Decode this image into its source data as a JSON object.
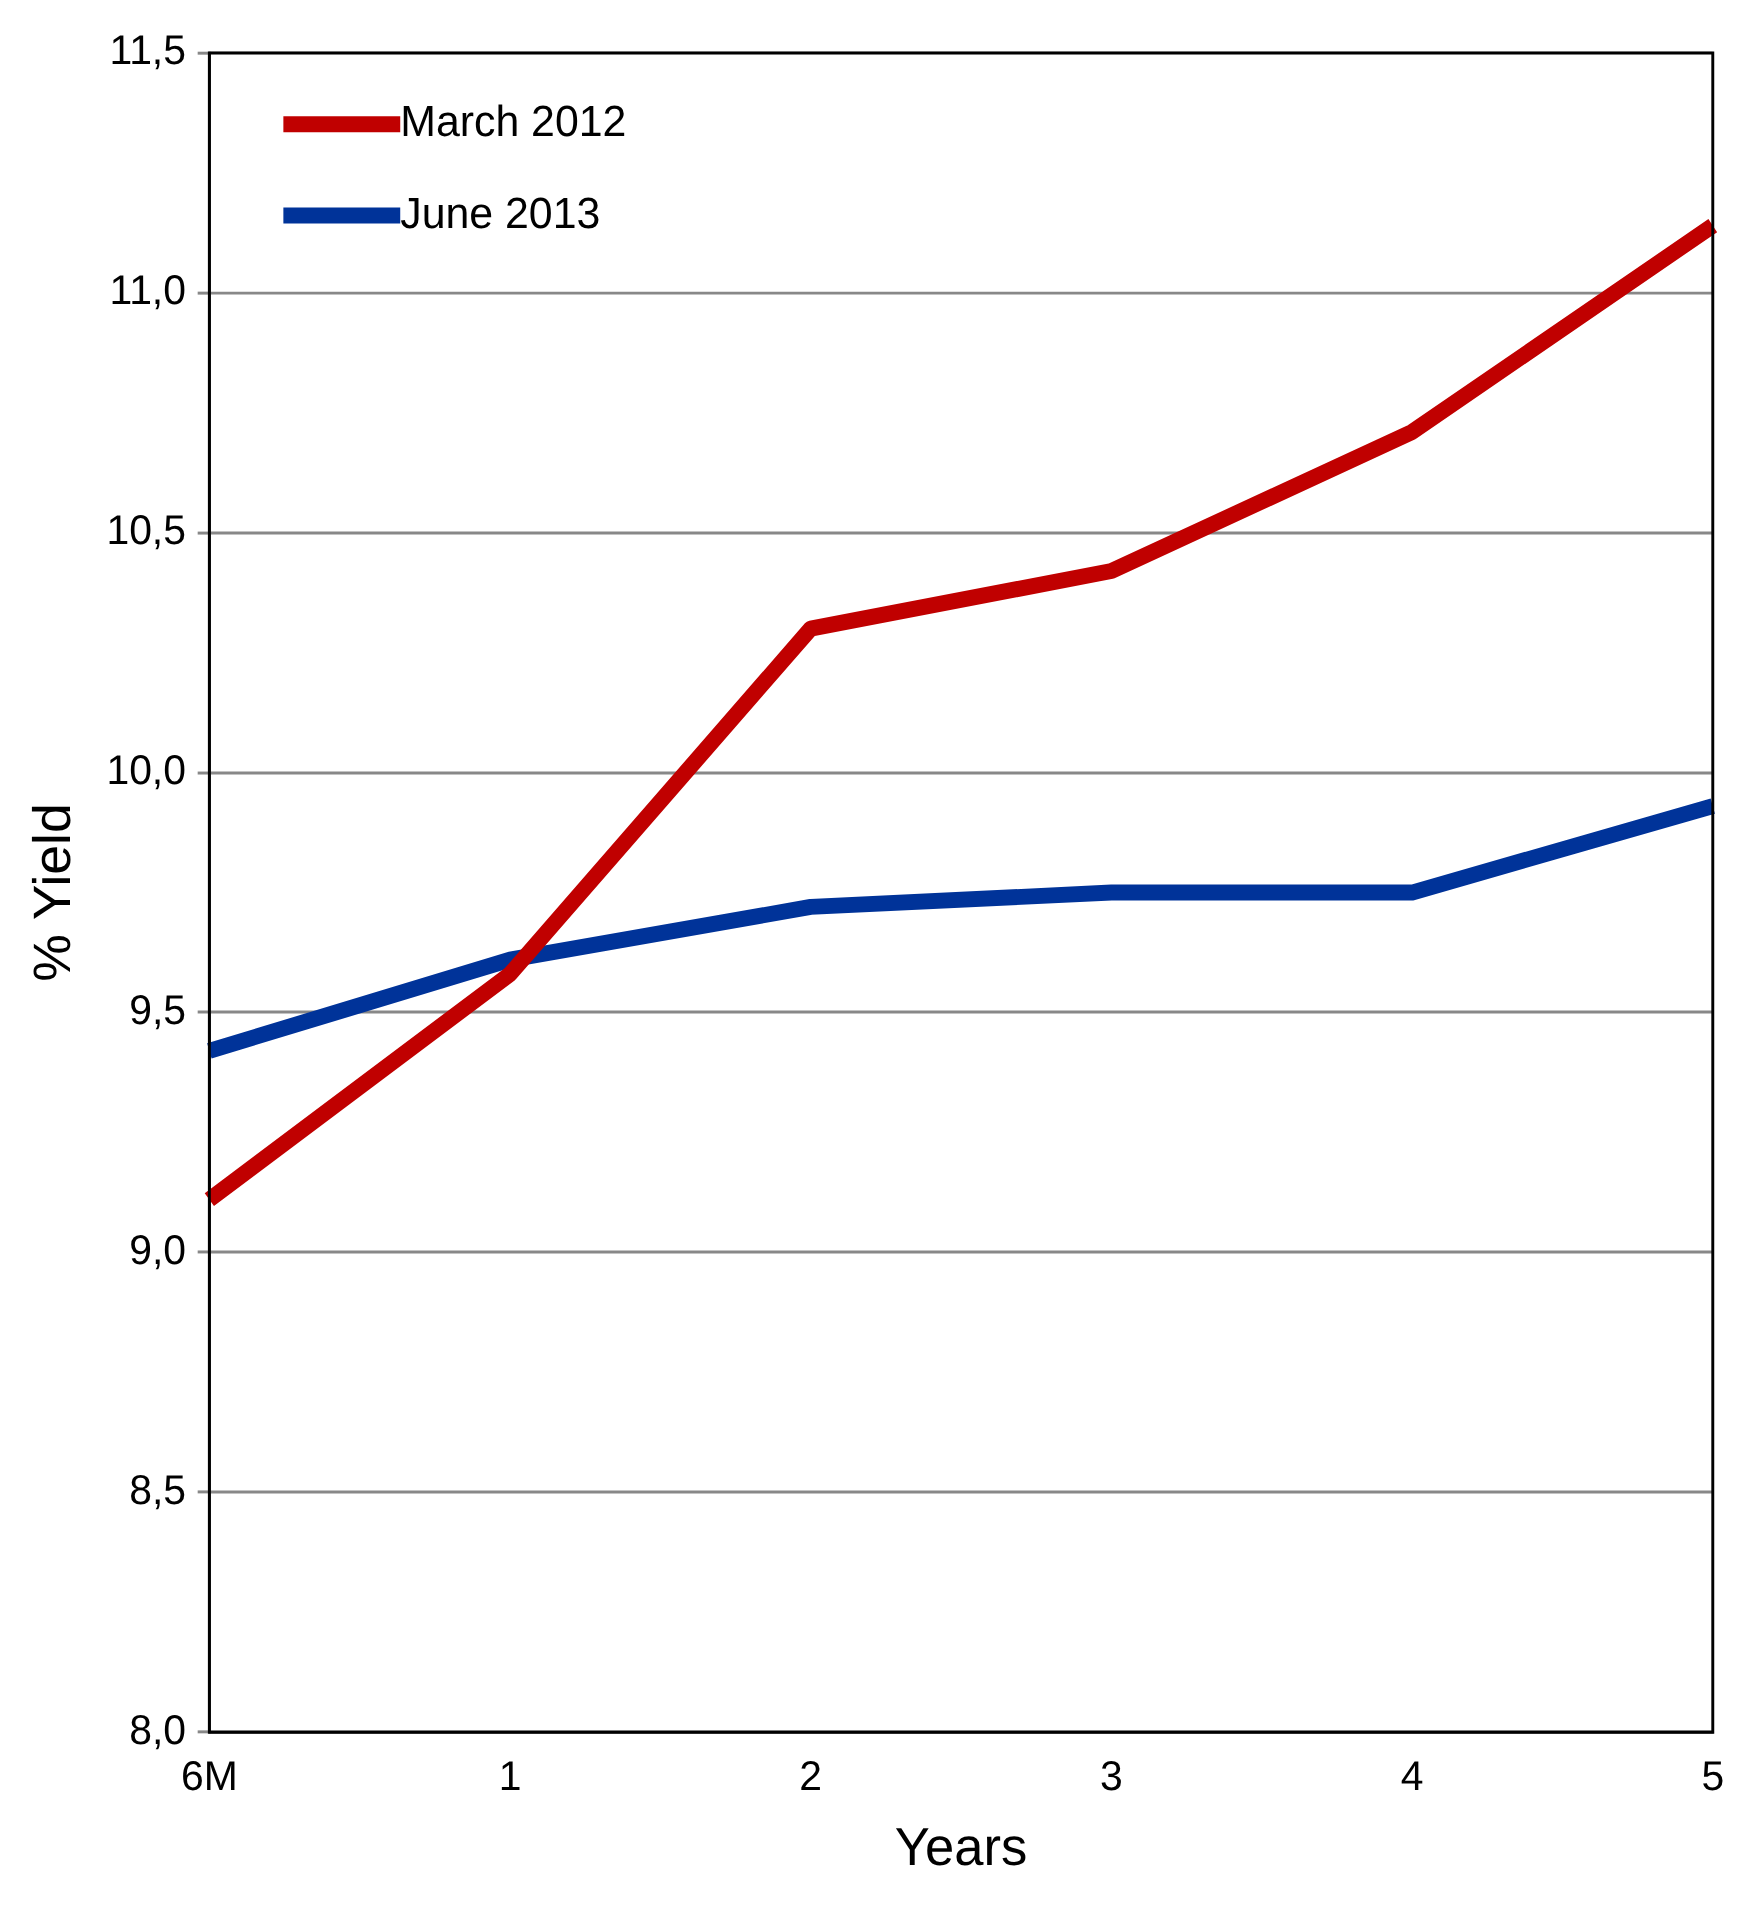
{
  "chart_data": {
    "type": "line",
    "xlabel": "Years",
    "ylabel": "% Yield",
    "categories": [
      "6M",
      "1",
      "2",
      "3",
      "4",
      "5"
    ],
    "series": [
      {
        "name": "March 2012",
        "color": "#c00000",
        "values": [
          9.11,
          9.58,
          10.3,
          10.42,
          10.71,
          11.14
        ]
      },
      {
        "name": "June 2013",
        "color": "#003399",
        "values": [
          9.42,
          9.61,
          9.72,
          9.75,
          9.75,
          9.93
        ]
      }
    ],
    "ylim": [
      8,
      11.5
    ],
    "yticks": [
      {
        "value": 8,
        "label": "8,0"
      },
      {
        "value": 8.5,
        "label": "8,5"
      },
      {
        "value": 9,
        "label": "9,0"
      },
      {
        "value": 9.5,
        "label": "9,5"
      },
      {
        "value": 10,
        "label": "10,0"
      },
      {
        "value": 10.5,
        "label": "10,5"
      },
      {
        "value": 11,
        "label": "11,0"
      },
      {
        "value": 11.5,
        "label": "11,5"
      }
    ],
    "grid": "y",
    "legend": "top left",
    "marker": "none",
    "line_style": "solid"
  }
}
